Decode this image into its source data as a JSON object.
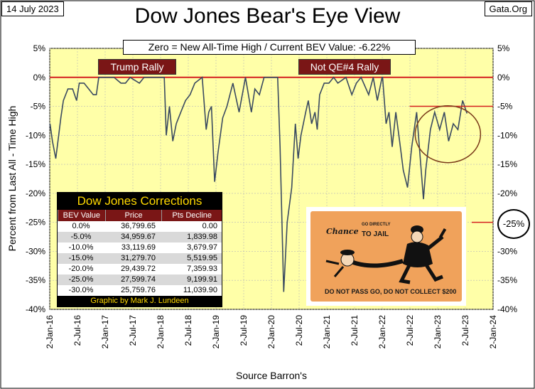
{
  "header": {
    "date": "14 July 2023",
    "site": "Gata.Org",
    "title": "Dow Jones Bear's Eye View",
    "subtitle": "Zero = New All-Time High / Current BEV Value:  -6.22%"
  },
  "annotations": {
    "rally1": "Trump Rally",
    "rally2": "Not QE#4 Rally",
    "current_level_label": "-25%"
  },
  "source": "Source Barron's",
  "colors": {
    "plot_bg": "#ffffa8",
    "line": "#3a4a60",
    "zero_line": "#d42020",
    "title_box_bg": "#7a1616",
    "circle": "#7a3a1a"
  },
  "corrections_table": {
    "title": "Dow Jones Corrections",
    "headers": [
      "BEV Value",
      "Price",
      "Pts Decline"
    ],
    "rows": [
      [
        "0.0%",
        "36,799.65",
        "0.00"
      ],
      [
        "-5.0%",
        "34,959.67",
        "1,839.98"
      ],
      [
        "-10.0%",
        "33,119.69",
        "3,679.97"
      ],
      [
        "-15.0%",
        "31,279.70",
        "5,519.95"
      ],
      [
        "-20.0%",
        "29,439.72",
        "7,359.93"
      ],
      [
        "-25.0%",
        "27,599.74",
        "9,199.91"
      ],
      [
        "-30.0%",
        "25,759.76",
        "11,039.90"
      ]
    ],
    "footer": "Graphic by Mark J. Lundeen"
  },
  "card": {
    "chance": "Chance",
    "small": "GO DIRECTLY",
    "jail": "TO JAIL",
    "bottom": "DO NOT PASS GO, DO NOT COLLECT $200",
    "icon": "monopoly-go-to-jail-card"
  },
  "chart_data": {
    "type": "line",
    "title": "Dow Jones Bear's Eye View",
    "xlabel": "Source Barron's",
    "ylabel": "Percent from Last All - Time High",
    "ylim": [
      -40,
      5
    ],
    "xlim": [
      "2016-01-02",
      "2024-01-02"
    ],
    "yticks": [
      5,
      0,
      -5,
      -10,
      -15,
      -20,
      -25,
      -30,
      -35,
      -40
    ],
    "ytick_labels": [
      "5%",
      "0%",
      "-5%",
      "-10%",
      "-15%",
      "-20%",
      "-25%",
      "-30%",
      "-35%",
      "-40%"
    ],
    "xtick_labels": [
      "2-Jan-16",
      "2-Jul-16",
      "2-Jan-17",
      "2-Jul-17",
      "2-Jan-18",
      "2-Jul-18",
      "2-Jan-19",
      "2-Jul-19",
      "2-Jan-20",
      "2-Jul-20",
      "2-Jan-21",
      "2-Jul-21",
      "2-Jan-22",
      "2-Jul-22",
      "2-Jan-23",
      "2-Jul-23",
      "2-Jan-24"
    ],
    "grid": true,
    "series": [
      {
        "x": [
          "2016-01-04",
          "2016-01-20",
          "2016-02-11",
          "2016-03-01",
          "2016-03-15",
          "2016-04-01",
          "2016-05-01",
          "2016-06-01",
          "2016-06-27",
          "2016-07-15",
          "2016-08-15",
          "2016-09-15",
          "2016-10-15",
          "2016-11-04",
          "2016-11-20",
          "2016-12-15",
          "2017-01-15",
          "2017-03-01",
          "2017-04-15",
          "2017-05-15",
          "2017-06-15",
          "2017-08-15",
          "2017-09-15",
          "2017-11-15",
          "2018-01-26",
          "2018-02-08",
          "2018-03-01",
          "2018-03-23",
          "2018-04-15",
          "2018-05-15",
          "2018-06-15",
          "2018-07-15",
          "2018-08-15",
          "2018-10-03",
          "2018-10-29",
          "2018-11-15",
          "2018-12-03",
          "2018-12-24",
          "2019-01-15",
          "2019-02-15",
          "2019-03-15",
          "2019-04-23",
          "2019-06-03",
          "2019-07-15",
          "2019-08-23",
          "2019-09-15",
          "2019-10-15",
          "2019-11-15",
          "2020-01-15",
          "2020-02-12",
          "2020-02-28",
          "2020-03-23",
          "2020-04-15",
          "2020-05-15",
          "2020-06-08",
          "2020-06-26",
          "2020-07-15",
          "2020-08-15",
          "2020-09-01",
          "2020-09-23",
          "2020-10-15",
          "2020-10-30",
          "2020-11-15",
          "2020-12-15",
          "2021-01-15",
          "2021-02-15",
          "2021-03-15",
          "2021-05-07",
          "2021-06-15",
          "2021-07-15",
          "2021-08-15",
          "2021-10-04",
          "2021-11-03",
          "2021-11-30",
          "2021-12-31",
          "2022-01-04",
          "2022-01-27",
          "2022-02-15",
          "2022-03-08",
          "2022-04-01",
          "2022-05-01",
          "2022-05-20",
          "2022-06-17",
          "2022-07-15",
          "2022-08-16",
          "2022-09-30",
          "2022-10-15",
          "2022-11-15",
          "2022-12-13",
          "2023-01-15",
          "2023-02-15",
          "2023-03-15",
          "2023-04-15",
          "2023-05-15",
          "2023-06-15",
          "2023-07-14"
        ],
        "y": [
          -8,
          -11,
          -14,
          -10,
          -7,
          -4,
          -2,
          -2,
          -4,
          -1,
          -1,
          -2,
          -3,
          -3,
          0,
          0,
          0,
          0,
          -1,
          -1,
          0,
          -1,
          0,
          0,
          0,
          -10,
          -5,
          -11,
          -8,
          -6,
          -4,
          -3,
          -1,
          0,
          -9,
          -6,
          -5,
          -18,
          -13,
          -7,
          -5,
          -1,
          -6,
          0,
          -6,
          -2,
          -3,
          0,
          0,
          0,
          -12,
          -37,
          -25,
          -19,
          -8,
          -14,
          -10,
          -6,
          -4,
          -8,
          -6,
          -9,
          -3,
          -1,
          -1,
          0,
          -1,
          0,
          -3,
          -1,
          0,
          -3,
          0,
          -4,
          0,
          0,
          -8,
          -6,
          -12,
          -6,
          -12,
          -16,
          -19,
          -12,
          -6,
          -21,
          -16,
          -9,
          -6,
          -9,
          -6,
          -11,
          -8,
          -9,
          -4,
          -6.22
        ]
      }
    ],
    "current_bev": -6.22
  }
}
